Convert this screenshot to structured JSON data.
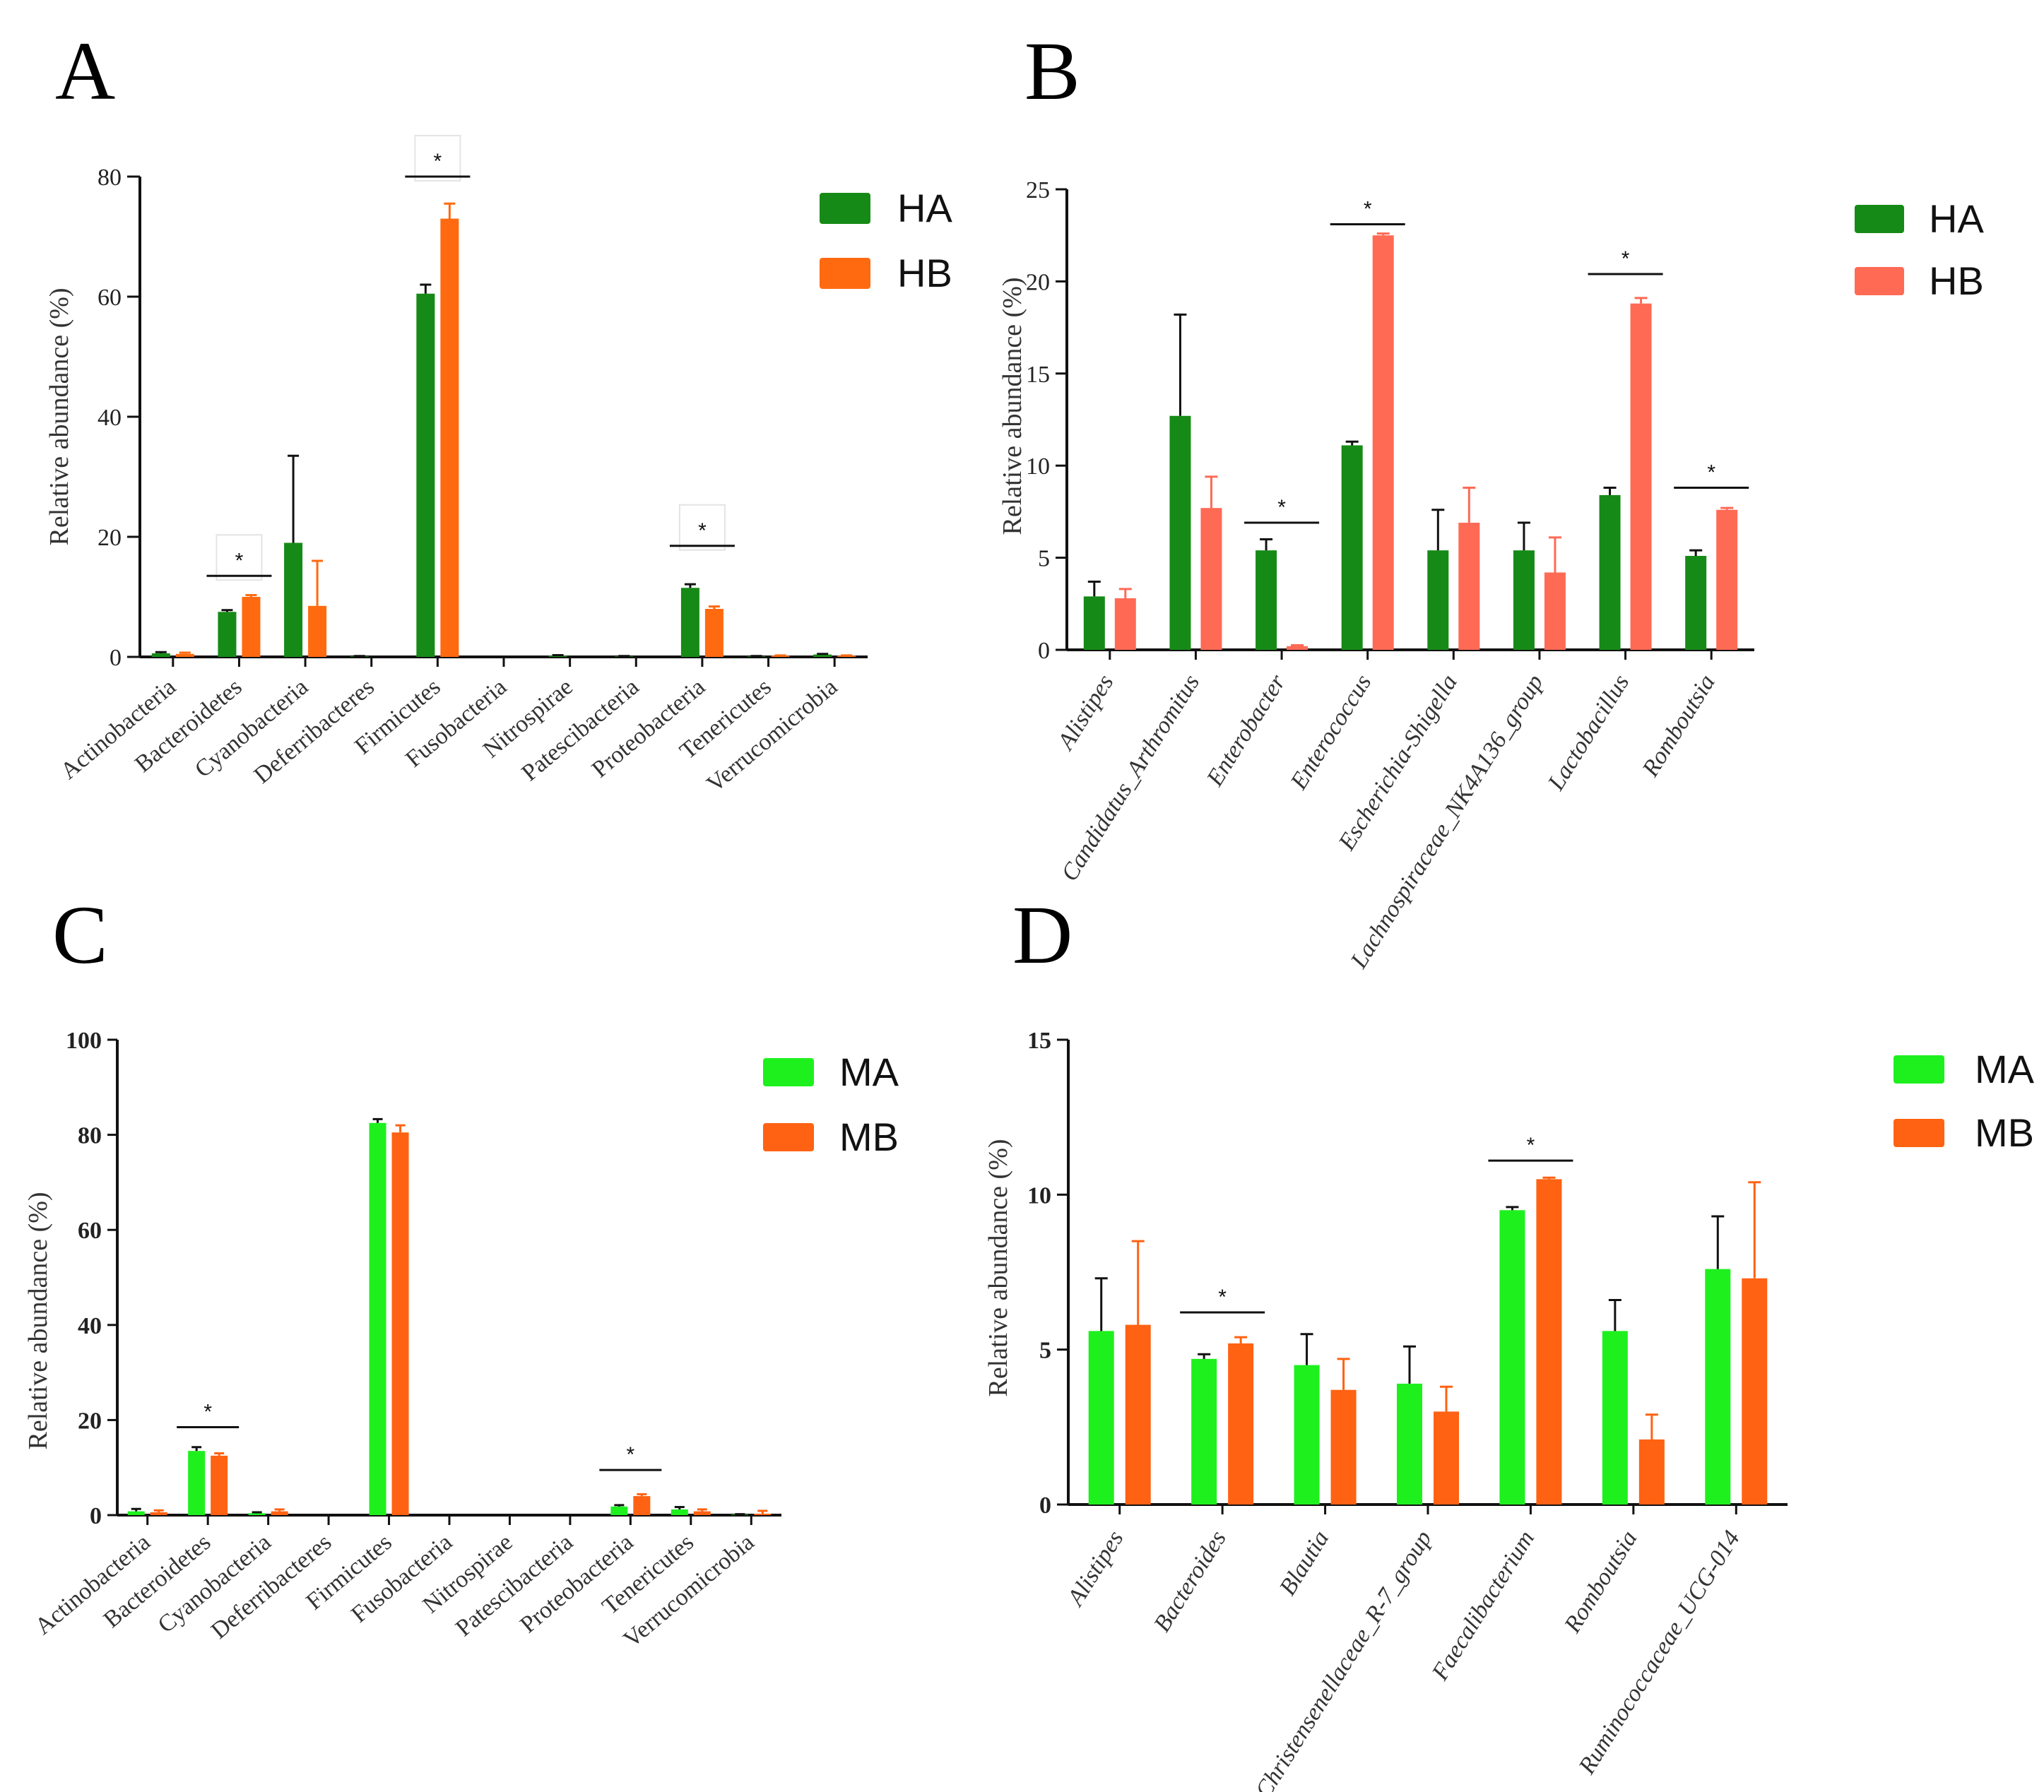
{
  "colors": {
    "HA": "#168a16",
    "HB_A": "#ff6a10",
    "HB_B": "#ff6a55",
    "MA": "#1ef01e",
    "MB": "#ff6212",
    "axis": "#111111"
  },
  "chart_data": [
    {
      "panel": "A",
      "type": "bar",
      "ylabel": "Relative abundance (%)",
      "ylim": [
        0,
        80
      ],
      "yticks": [
        0,
        20,
        40,
        60,
        80
      ],
      "italic_categories": false,
      "bold_ticks": false,
      "categories": [
        "Actinobacteria",
        "Bacteroidetes",
        "Cyanobacteria",
        "Deferribacteres",
        "Firmicutes",
        "Fusobacteria",
        "Nitrospirae",
        "Patescibacteria",
        "Proteobacteria",
        "Tenericutes",
        "Verrucomicrobia"
      ],
      "series": [
        {
          "name": "HA",
          "color": "#168a16",
          "values": [
            0.6,
            7.5,
            19.0,
            0.1,
            60.5,
            0.0,
            0.2,
            0.1,
            11.5,
            0.1,
            0.4
          ],
          "errors": [
            0.2,
            0.3,
            14.5,
            0.05,
            1.5,
            0.0,
            0.1,
            0.05,
            0.6,
            0.05,
            0.1
          ]
        },
        {
          "name": "HB",
          "color": "#ff6a10",
          "values": [
            0.5,
            10.0,
            8.5,
            0.0,
            73.0,
            0.0,
            0.0,
            0.0,
            8.0,
            0.2,
            0.2
          ],
          "errors": [
            0.2,
            0.3,
            7.5,
            0.0,
            2.5,
            0.0,
            0.0,
            0.0,
            0.4,
            0.05,
            0.05
          ]
        }
      ],
      "significance": [
        {
          "category": "Bacteroidetes",
          "label": "*",
          "level": 13.5
        },
        {
          "category": "Firmicutes",
          "label": "*",
          "level": 80
        },
        {
          "category": "Proteobacteria",
          "label": "*",
          "level": 18.5
        }
      ]
    },
    {
      "panel": "B",
      "type": "bar",
      "ylabel": "Relative abundance (%)",
      "ylim": [
        0,
        25
      ],
      "yticks": [
        0,
        5,
        10,
        15,
        20,
        25
      ],
      "italic_categories": true,
      "bold_ticks": false,
      "categories": [
        "Alistipes",
        "Candidatus_Arthromitus",
        "Enterobacter",
        "Enterococcus",
        "Escherichia-Shigella",
        "Lachnospiraceae_NK4A136_group",
        "Lactobacillus",
        "Romboutsia"
      ],
      "series": [
        {
          "name": "HA",
          "color": "#168a16",
          "values": [
            2.9,
            12.7,
            5.4,
            11.1,
            5.4,
            5.4,
            8.4,
            5.1
          ],
          "errors": [
            0.8,
            5.5,
            0.6,
            0.2,
            2.2,
            1.5,
            0.4,
            0.3
          ]
        },
        {
          "name": "HB",
          "color": "#ff6a55",
          "values": [
            2.8,
            7.7,
            0.2,
            22.5,
            6.9,
            4.2,
            18.8,
            7.6
          ],
          "errors": [
            0.5,
            1.7,
            0.05,
            0.1,
            1.9,
            1.9,
            0.3,
            0.1
          ]
        }
      ],
      "significance": [
        {
          "category": "Enterobacter",
          "label": "*",
          "level": 6.9
        },
        {
          "category": "Enterococcus",
          "label": "*",
          "level": 23.1
        },
        {
          "category": "Lactobacillus",
          "label": "*",
          "level": 20.4
        },
        {
          "category": "Romboutsia",
          "label": "*",
          "level": 8.8
        }
      ]
    },
    {
      "panel": "C",
      "type": "bar",
      "ylabel": "Relative abundance (%)",
      "ylim": [
        0,
        100
      ],
      "yticks": [
        0,
        20,
        40,
        60,
        80,
        100
      ],
      "italic_categories": false,
      "bold_ticks": true,
      "categories": [
        "Actinobacteria",
        "Bacteroidetes",
        "Cyanobacteria",
        "Deferribacteres",
        "Firmicutes",
        "Fusobacteria",
        "Nitrospirae",
        "Patescibacteria",
        "Proteobacteria",
        "Tenericutes",
        "Verrucomicrobia"
      ],
      "series": [
        {
          "name": "MA",
          "color": "#1ef01e",
          "values": [
            0.8,
            13.5,
            0.4,
            0.0,
            82.5,
            0.0,
            0.0,
            0.0,
            1.8,
            1.2,
            0.1
          ],
          "errors": [
            0.5,
            0.8,
            0.2,
            0.0,
            0.8,
            0.0,
            0.0,
            0.0,
            0.3,
            0.5,
            0.1
          ]
        },
        {
          "name": "MB",
          "color": "#ff6212",
          "values": [
            0.6,
            12.5,
            0.8,
            0.0,
            80.5,
            0.0,
            0.0,
            0.0,
            4.0,
            0.8,
            0.3
          ],
          "errors": [
            0.4,
            0.5,
            0.4,
            0.0,
            1.5,
            0.0,
            0.0,
            0.0,
            0.4,
            0.4,
            0.6
          ]
        }
      ],
      "significance": [
        {
          "category": "Bacteroidetes",
          "label": "*",
          "level": 18.5
        },
        {
          "category": "Proteobacteria",
          "label": "*",
          "level": 9.5
        }
      ]
    },
    {
      "panel": "D",
      "type": "bar",
      "ylabel": "Relative abundance (%)",
      "ylim": [
        0,
        15
      ],
      "yticks": [
        0,
        5,
        10,
        15
      ],
      "italic_categories": true,
      "bold_ticks": true,
      "categories": [
        "Alistipes",
        "Bacteroides",
        "Blautia",
        "Christensenellaceae_R-7_group",
        "Faecalibacterium",
        "Romboutsia",
        "Ruminococcaceae_UCG-014"
      ],
      "series": [
        {
          "name": "MA",
          "color": "#1ef01e",
          "values": [
            5.6,
            4.7,
            4.5,
            3.9,
            9.5,
            5.6,
            7.6
          ],
          "errors": [
            1.7,
            0.15,
            1.0,
            1.2,
            0.1,
            1.0,
            1.7
          ]
        },
        {
          "name": "MB",
          "color": "#ff6212",
          "values": [
            5.8,
            5.2,
            3.7,
            3.0,
            10.5,
            2.1,
            7.3
          ],
          "errors": [
            2.7,
            0.2,
            1.0,
            0.8,
            0.05,
            0.8,
            3.1
          ]
        }
      ],
      "significance": [
        {
          "category": "Bacteroides",
          "label": "*",
          "level": 6.2
        },
        {
          "category": "Faecalibacterium",
          "label": "*",
          "level": 11.1
        }
      ]
    }
  ]
}
